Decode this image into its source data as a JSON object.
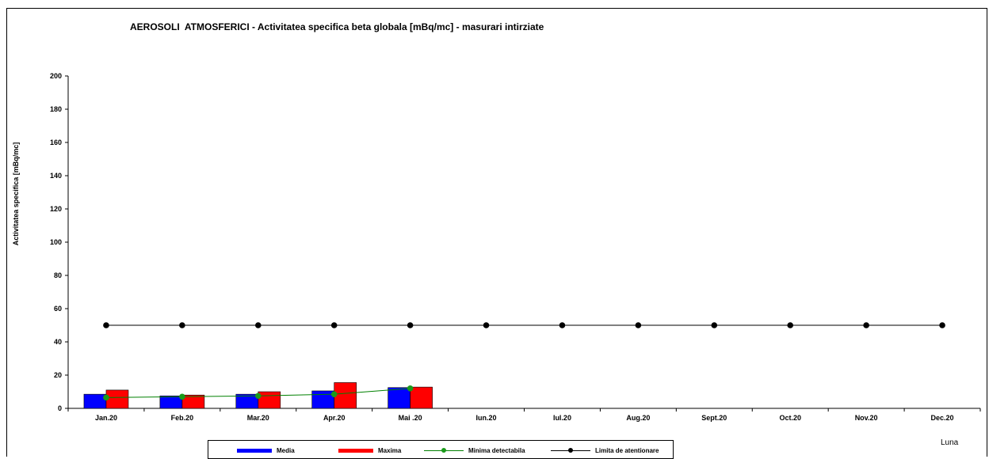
{
  "chart_data": {
    "type": "bar",
    "title": "AEROSOLI  ATMOSFERICI - Activitatea specifica beta globala [mBq/mc] - masurari intirziate",
    "xlabel": "Luna",
    "ylabel": "Activitatea specifica [mBq/mc]",
    "ylim": [
      0,
      200
    ],
    "yticks": [
      "0",
      "20",
      "40",
      "60",
      "80",
      "100",
      "120",
      "140",
      "160",
      "180",
      "200"
    ],
    "categories": [
      "Jan.20",
      "Feb.20",
      "Mar.20",
      "Apr.20",
      "Mai .20",
      "Iun.20",
      "Iul.20",
      "Aug.20",
      "Sept.20",
      "Oct.20",
      "Nov.20",
      "Dec.20"
    ],
    "grid": false,
    "legend_position": "bottom",
    "series": [
      {
        "name": "Media",
        "kind": "bar",
        "color": "#0000ff",
        "values": [
          8.5,
          7.5,
          8.5,
          10.5,
          12.5,
          null,
          null,
          null,
          null,
          null,
          null,
          null
        ]
      },
      {
        "name": "Maxima",
        "kind": "bar",
        "color": "#ff0000",
        "values": [
          11,
          8,
          10,
          15.5,
          12.8,
          null,
          null,
          null,
          null,
          null,
          null,
          null
        ]
      },
      {
        "name": "Minima detectabila",
        "kind": "line",
        "color": "#008000",
        "marker_color": "#1a9a1a",
        "values": [
          6.5,
          7,
          7.5,
          8.5,
          12,
          null,
          null,
          null,
          null,
          null,
          null,
          null
        ]
      },
      {
        "name": "Limita de atentionare",
        "kind": "line",
        "color": "#000000",
        "marker_color": "#000000",
        "values": [
          50,
          50,
          50,
          50,
          50,
          50,
          50,
          50,
          50,
          50,
          50,
          50
        ]
      }
    ]
  }
}
